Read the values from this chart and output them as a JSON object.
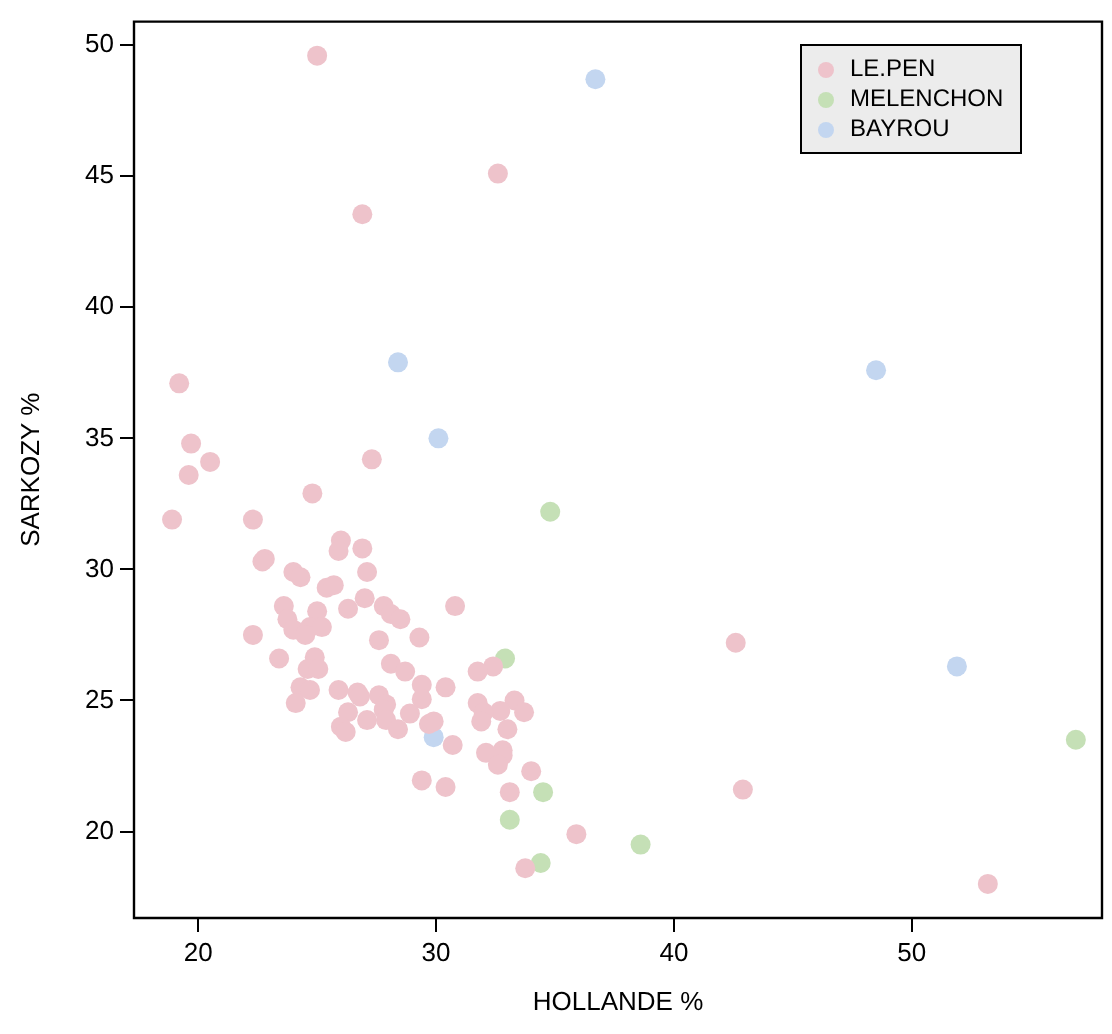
{
  "chart_data": {
    "type": "scatter",
    "xlabel": "HOLLANDE %",
    "ylabel": "SARKOZY %",
    "xlim": [
      17.3,
      58
    ],
    "ylim": [
      16.7,
      50.9
    ],
    "xticks": [
      20,
      30,
      40,
      50
    ],
    "yticks": [
      20,
      25,
      30,
      35,
      40,
      45,
      50
    ],
    "grid": false,
    "legend": "top right",
    "marker": "circle",
    "series": [
      {
        "name": "LE.PEN",
        "color": "#eec3cb",
        "x": [
          25.0,
          26.9,
          32.6,
          19.2,
          19.7,
          20.5,
          19.6,
          27.3,
          24.8,
          18.9,
          22.3,
          26.0,
          25.9,
          26.9,
          22.8,
          22.7,
          24.0,
          24.3,
          27.1,
          25.4,
          25.7,
          23.6,
          27.0,
          26.3,
          25.0,
          23.75,
          27.8,
          28.1,
          28.5,
          30.8,
          24.0,
          24.7,
          25.2,
          24.5,
          22.3,
          27.6,
          29.3,
          23.4,
          24.9,
          28.1,
          32.4,
          24.6,
          25.05,
          28.7,
          31.75,
          24.3,
          24.7,
          25.9,
          26.7,
          26.8,
          27.6,
          27.9,
          29.4,
          29.4,
          30.4,
          24.1,
          31.75,
          33.3,
          32.7,
          33.7,
          26.3,
          27.8,
          32.0,
          27.1,
          27.9,
          28.4,
          28.9,
          29.7,
          29.9,
          30.7,
          31.9,
          33.0,
          32.8,
          32.8,
          32.1,
          32.6,
          34.0,
          29.4,
          30.4,
          33.1,
          35.9,
          33.75,
          42.6,
          42.9,
          53.2,
          26.0,
          26.2
        ],
        "values": [
          49.6,
          43.55,
          45.1,
          37.1,
          34.8,
          34.1,
          33.6,
          34.2,
          32.9,
          31.9,
          31.9,
          31.1,
          30.7,
          30.8,
          30.4,
          30.3,
          29.9,
          29.7,
          29.9,
          29.3,
          29.4,
          28.6,
          28.9,
          28.5,
          28.4,
          28.1,
          28.6,
          28.3,
          28.1,
          28.6,
          27.7,
          27.8,
          27.8,
          27.5,
          27.5,
          27.3,
          27.4,
          26.6,
          26.65,
          26.4,
          26.3,
          26.2,
          26.2,
          26.1,
          26.1,
          25.5,
          25.4,
          25.4,
          25.3,
          25.15,
          25.2,
          24.85,
          25.6,
          25.05,
          25.5,
          24.9,
          24.9,
          25.0,
          24.6,
          24.55,
          24.55,
          24.65,
          24.55,
          24.25,
          24.25,
          23.9,
          24.5,
          24.1,
          24.2,
          23.3,
          24.2,
          23.9,
          23.1,
          22.9,
          23.0,
          22.55,
          22.3,
          21.95,
          21.7,
          21.5,
          19.9,
          18.6,
          27.2,
          21.6,
          18.0,
          24.0,
          23.8
        ]
      },
      {
        "name": "MELENCHON",
        "color": "#c5e0b6",
        "x": [
          34.8,
          32.9,
          56.9,
          34.5,
          33.1,
          38.6,
          34.4
        ],
        "values": [
          32.2,
          26.6,
          23.5,
          21.5,
          20.45,
          19.5,
          18.8
        ]
      },
      {
        "name": "BAYROU",
        "color": "#c3d6f0",
        "x": [
          36.7,
          28.4,
          48.5,
          30.1,
          51.9,
          29.9
        ],
        "values": [
          48.7,
          37.9,
          37.6,
          35.0,
          26.3,
          23.6
        ]
      }
    ]
  }
}
